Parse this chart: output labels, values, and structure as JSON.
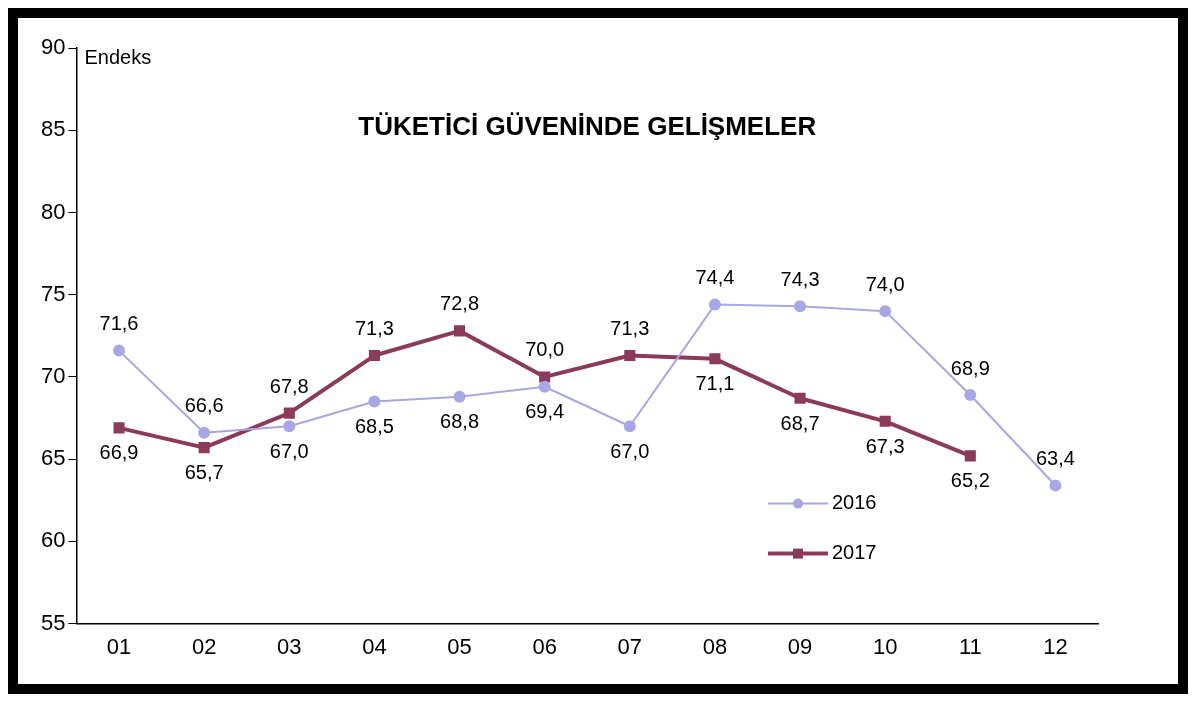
{
  "chart_data": {
    "type": "line",
    "title": "TÜKETİCİ GÜVENİNDE GELİŞMELER",
    "ylabel": "Endeks",
    "categories": [
      "01",
      "02",
      "03",
      "04",
      "05",
      "06",
      "07",
      "08",
      "09",
      "10",
      "11",
      "12"
    ],
    "series": [
      {
        "name": "2016",
        "color": "#a9a6e6",
        "marker": "circle",
        "values": [
          71.6,
          66.6,
          67.0,
          68.5,
          68.8,
          69.4,
          67.0,
          74.4,
          74.3,
          74.0,
          68.9,
          63.4
        ],
        "value_labels": [
          "71,6",
          "66,6",
          "67,0",
          "68,5",
          "68,8",
          "69,4",
          "67,0",
          "74,4",
          "74,3",
          "74,0",
          "68,9",
          "63,4"
        ]
      },
      {
        "name": "2017",
        "color": "#8b3a5a",
        "marker": "square",
        "values": [
          66.9,
          65.7,
          67.8,
          71.3,
          72.8,
          70.0,
          71.3,
          71.1,
          68.7,
          67.3,
          65.2,
          null
        ],
        "value_labels": [
          "66,9",
          "65,7",
          "67,8",
          "71,3",
          "72,8",
          "70,0",
          "71,3",
          "71,1",
          "68,7",
          "67,3",
          "65,2",
          null
        ]
      }
    ],
    "ylim": [
      55,
      90
    ],
    "yticks": [
      55,
      60,
      65,
      70,
      75,
      80,
      85,
      90
    ],
    "grid": false,
    "legend": "bottom right",
    "line_style": "solid"
  }
}
